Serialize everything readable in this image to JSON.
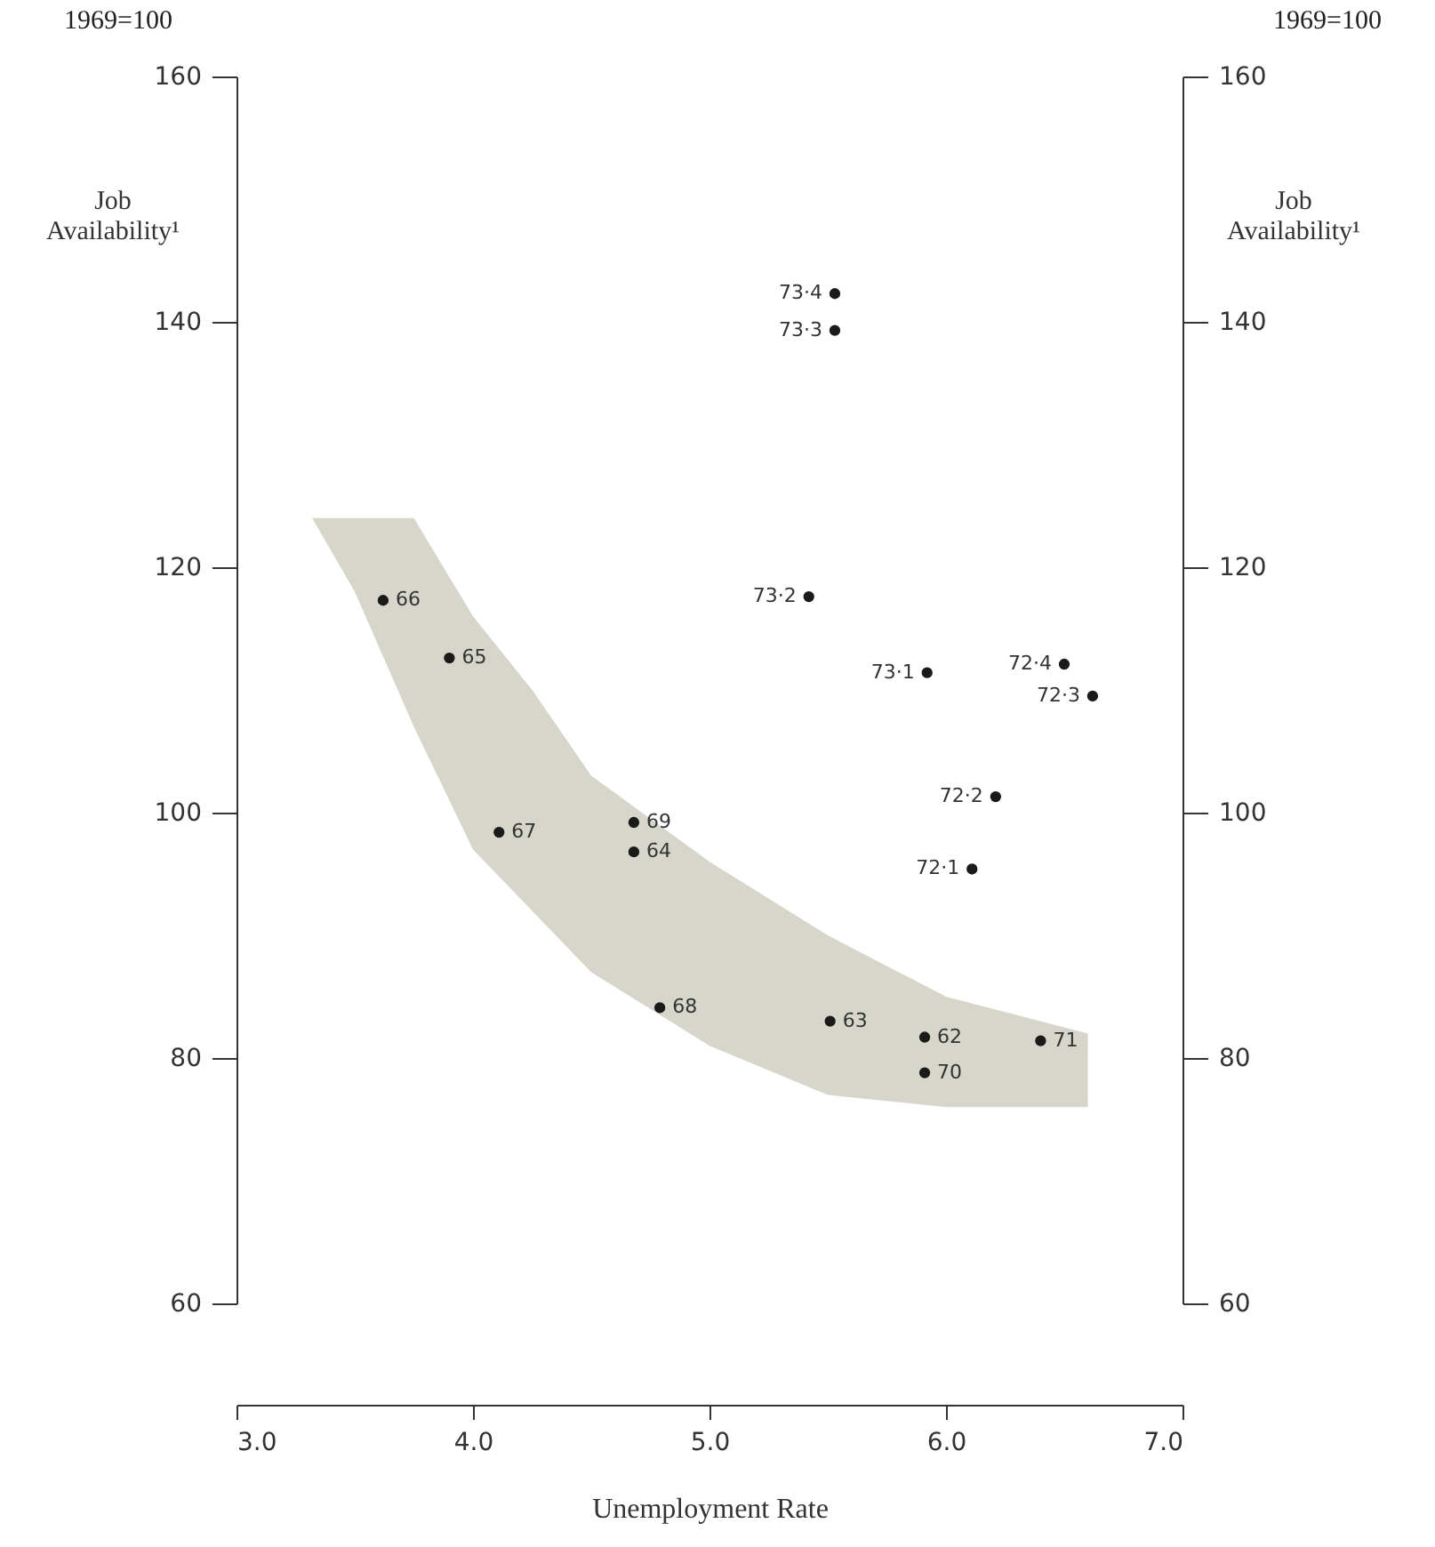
{
  "chart_data": {
    "type": "scatter",
    "xlabel": "Unemployment Rate",
    "ylabel": "Job Availability¹",
    "y2label": "Job Availability¹",
    "annotations": [
      "1969=100",
      "1969=100",
      {
        "text": "62",
        "x": 5.91,
        "y": 81.7
      },
      {
        "text": "63",
        "x": 5.51,
        "y": 83
      },
      {
        "text": "64",
        "x": 4.68,
        "y": 96.8
      },
      {
        "text": "65",
        "x": 3.9,
        "y": 112.6
      },
      {
        "text": "66",
        "x": 3.62,
        "y": 117.3
      },
      {
        "text": "67",
        "x": 4.11,
        "y": 98.4
      },
      {
        "text": "68",
        "x": 4.79,
        "y": 84.1
      },
      {
        "text": "69",
        "x": 4.68,
        "y": 99.2
      },
      {
        "text": "70",
        "x": 5.91,
        "y": 78.8
      },
      {
        "text": "71",
        "x": 6.4,
        "y": 81.4
      },
      {
        "text": "72·1",
        "x": 6.11,
        "y": 95.4
      },
      {
        "text": "72·2",
        "x": 6.21,
        "y": 101.3
      },
      {
        "text": "72·3",
        "x": 6.62,
        "y": 109.5
      },
      {
        "text": "72·4",
        "x": 6.5,
        "y": 112.1
      },
      {
        "text": "73·1",
        "x": 5.92,
        "y": 111.4
      },
      {
        "text": "73·2",
        "x": 5.42,
        "y": 117.6
      },
      {
        "text": "73·3",
        "x": 5.53,
        "y": 139.3
      },
      {
        "text": "73·4",
        "x": 5.53,
        "y": 142.3
      }
    ],
    "xlim": [
      3,
      7
    ],
    "xticks": [
      {
        "value": 3,
        "label": "3.0"
      },
      {
        "value": 4,
        "label": "4.0"
      },
      {
        "value": 5,
        "label": "5.0"
      },
      {
        "value": 6,
        "label": "6.0"
      },
      {
        "value": 7,
        "label": "7.0"
      }
    ],
    "ylim": [
      60,
      160
    ],
    "yticks": [
      60,
      80,
      100,
      120,
      140,
      160
    ],
    "y2lim": [
      60,
      160
    ],
    "y2ticks": [
      60,
      80,
      100,
      120,
      140,
      160
    ],
    "marker": "circle",
    "series": [
      {
        "type": "area",
        "axis": "y2",
        "color": "#d6d6ca",
        "x": [
          3.32,
          3.5,
          3.75,
          4.0,
          4.25,
          4.5,
          5.0,
          5.5,
          6.0,
          6.6
        ],
        "values": [
          null,
          null,
          null,
          null,
          null,
          null,
          null,
          null,
          null,
          null
        ],
        "lower": [
          124,
          118,
          107,
          97,
          92,
          87,
          81,
          77,
          76,
          76
        ],
        "upper": [
          124,
          124,
          124,
          116,
          110,
          103,
          96,
          90,
          85,
          82
        ]
      },
      {
        "color": "#1a1a1a",
        "x": [
          5.91,
          5.51,
          4.68,
          3.9,
          3.62,
          4.11,
          4.79,
          4.68,
          5.91,
          6.4,
          6.11,
          6.21,
          6.62,
          6.5,
          5.92,
          5.42,
          5.53,
          5.53
        ],
        "values": [
          81.7,
          83,
          96.8,
          112.6,
          117.3,
          98.4,
          84.1,
          99.2,
          78.8,
          81.4,
          95.4,
          101.3,
          109.5,
          112.1,
          111.4,
          117.6,
          139.3,
          142.3
        ]
      }
    ]
  }
}
